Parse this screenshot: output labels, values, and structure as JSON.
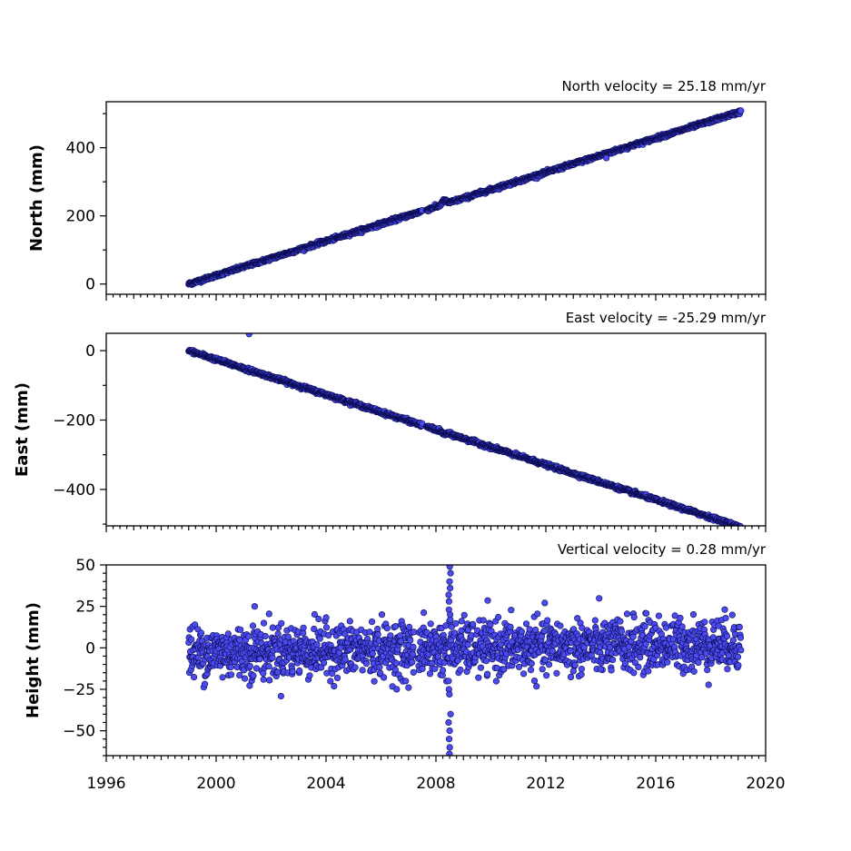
{
  "chart_data": [
    {
      "type": "scatter",
      "ylabel": "North (mm)",
      "title": "North velocity = 25.18 mm/yr",
      "xlim": [
        1996,
        2020
      ],
      "ylim": [
        -30,
        535
      ],
      "yticks": [
        0,
        200,
        400
      ],
      "ytick_labels": [
        "0",
        "200",
        "400"
      ],
      "minor_ytick_step": 100,
      "x_minor_step": 0.25,
      "point_color": "#4b4bf0",
      "velocity": 25.18,
      "x_start": 1999.0,
      "x_end": 2019.1,
      "y_start": 0,
      "noise": 2.5,
      "gap": [
        2007.5,
        2007.65
      ],
      "offsets": [
        {
          "x": 2008.3,
          "y": 10,
          "width": 0.35
        }
      ],
      "outliers": [
        {
          "x": 2014.2,
          "y": 370
        }
      ]
    },
    {
      "type": "scatter",
      "ylabel": "East (mm)",
      "title": "East velocity = -25.29 mm/yr",
      "xlim": [
        1996,
        2020
      ],
      "ylim": [
        -505,
        50
      ],
      "yticks": [
        -400,
        -200,
        0
      ],
      "ytick_labels": [
        "−400",
        "−200",
        "0"
      ],
      "minor_ytick_step": 100,
      "x_minor_step": 0.25,
      "point_color": "#4b4bf0",
      "velocity": -25.29,
      "x_start": 1999.0,
      "x_end": 2019.1,
      "y_start": 0,
      "noise": 2.5,
      "gap": [
        2007.5,
        2007.65
      ],
      "offsets": [
        {
          "x": 2008.3,
          "y": -5,
          "width": 0.35
        }
      ],
      "outliers": [
        {
          "x": 2001.2,
          "y": 48
        }
      ]
    },
    {
      "type": "scatter",
      "ylabel": "Height (mm)",
      "title": "Vertical velocity = 0.28 mm/yr",
      "xlim": [
        1996,
        2020
      ],
      "ylim": [
        -65,
        50
      ],
      "yticks": [
        -50,
        -25,
        0,
        25,
        50
      ],
      "ytick_labels": [
        "−50",
        "−25",
        "0",
        "25",
        "50"
      ],
      "minor_ytick_step": 5,
      "x_minor_step": 0.25,
      "point_color": "#4b4bf0",
      "velocity": 0.28,
      "x_start": 1999.0,
      "x_end": 2019.1,
      "y_start": -3,
      "noise": 8,
      "gap": [
        2007.2,
        2007.35
      ],
      "outliers": [
        {
          "x": 2001.4,
          "y": 25
        },
        {
          "x": 2006.9,
          "y": -20
        },
        {
          "x": 2007.0,
          "y": -24
        },
        {
          "x": 2013.0,
          "y": -14
        },
        {
          "x": 2014.0,
          "y": -13
        }
      ],
      "spike": {
        "x": 2008.5,
        "values": [
          49,
          45,
          40,
          36,
          32,
          28,
          23,
          20,
          17,
          -20,
          -25,
          -28,
          -40,
          -45,
          -50,
          -55,
          -60,
          -64
        ]
      }
    }
  ],
  "x_axis": {
    "ticks": [
      1996,
      2000,
      2004,
      2008,
      2012,
      2016,
      2020
    ],
    "tick_labels": [
      "1996",
      "2000",
      "2004",
      "2008",
      "2012",
      "2016",
      "2020"
    ]
  }
}
